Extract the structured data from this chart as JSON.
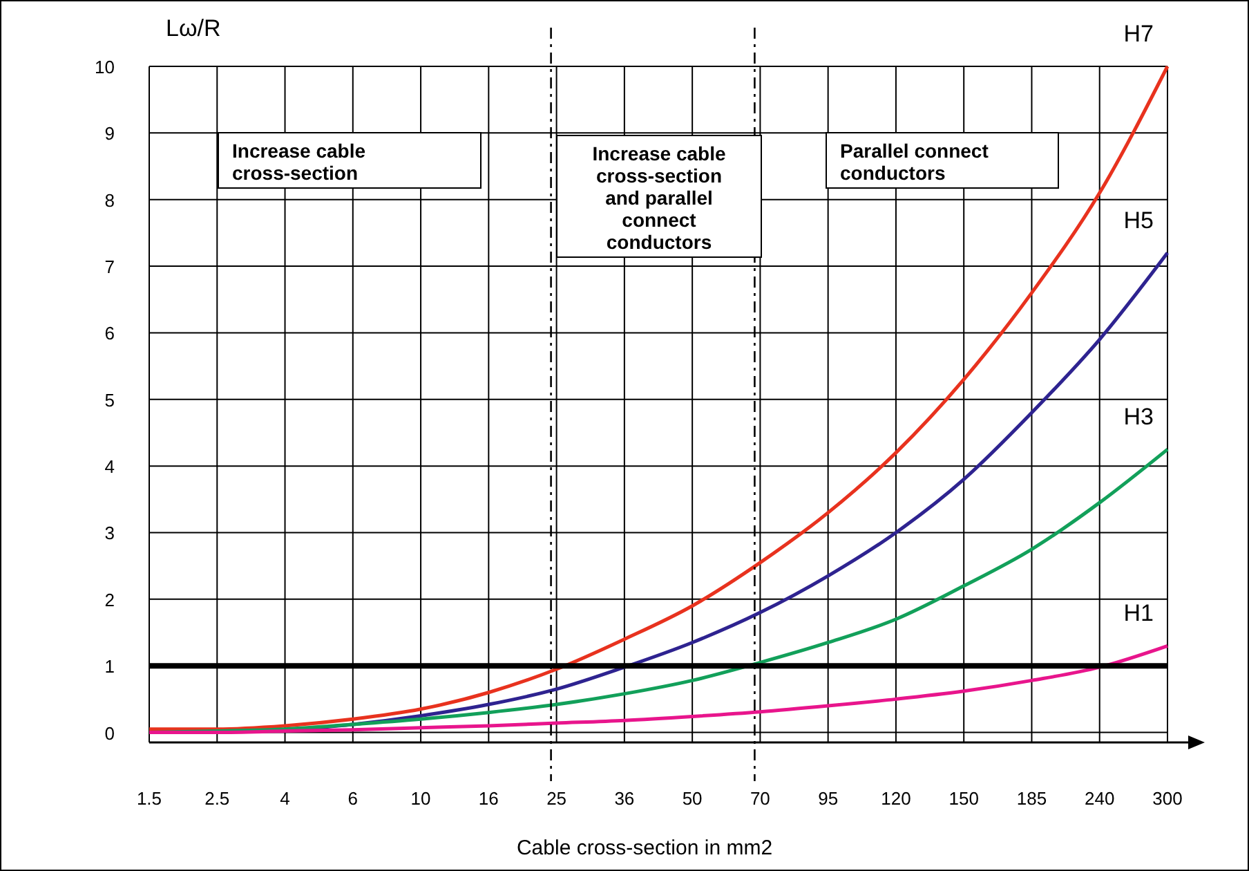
{
  "chart_data": {
    "type": "line",
    "xlabel": "Cable cross-section in mm2",
    "ylabel": "Lω/R",
    "categories": [
      "1.5",
      "2.5",
      "4",
      "6",
      "10",
      "16",
      "25",
      "36",
      "50",
      "70",
      "95",
      "120",
      "150",
      "185",
      "240",
      "300"
    ],
    "series": [
      {
        "name": "H7",
        "color": "#e8321e",
        "values": [
          0.05,
          0.05,
          0.1,
          0.2,
          0.35,
          0.6,
          0.95,
          1.4,
          1.9,
          2.55,
          3.3,
          4.2,
          5.3,
          6.6,
          8.1,
          10
        ]
      },
      {
        "name": "H5",
        "color": "#2e2390",
        "values": [
          null,
          null,
          0.03,
          0.12,
          0.25,
          0.42,
          0.65,
          0.98,
          1.35,
          1.8,
          2.35,
          3.0,
          3.8,
          4.8,
          5.9,
          7.2
        ]
      },
      {
        "name": "H3",
        "color": "#12a05a",
        "values": [
          0,
          0.02,
          0.05,
          0.12,
          0.2,
          0.3,
          0.42,
          0.58,
          0.78,
          1.05,
          1.35,
          1.7,
          2.2,
          2.75,
          3.45,
          4.25
        ]
      },
      {
        "name": "H1",
        "color": "#e8158c",
        "values": [
          0,
          0,
          0.02,
          0.04,
          0.07,
          0.1,
          0.14,
          0.18,
          0.24,
          0.31,
          0.4,
          0.5,
          0.62,
          0.78,
          0.98,
          1.3
        ]
      }
    ],
    "ylim": [
      -0.15,
      10
    ],
    "yticks": [
      0,
      1,
      2,
      3,
      4,
      5,
      6,
      7,
      8,
      9,
      10
    ],
    "grid": true,
    "marker": "none",
    "line_style": "solid",
    "ref_lines": [
      {
        "axis": "y",
        "value": 1,
        "color": "#000000",
        "line_style": "solid"
      },
      {
        "axis": "x",
        "value": "25",
        "color": "#000000",
        "line_style": "dashed"
      },
      {
        "axis": "x",
        "value": "70",
        "color": "#000000",
        "line_style": "dashed"
      }
    ],
    "annotations": [
      "Increase cable\ncross-section",
      "Increase cable\ncross-section\nand parallel\nconnect\nconductors",
      "Parallel connect\nconductors"
    ]
  }
}
